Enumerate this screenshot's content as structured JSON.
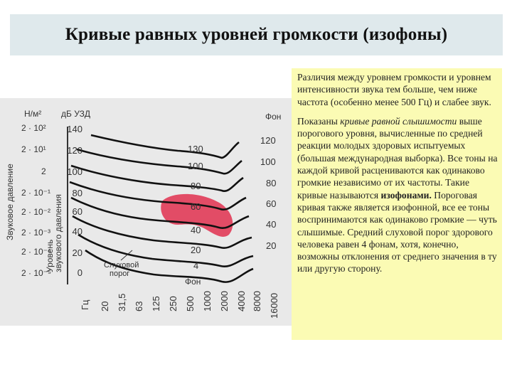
{
  "header": {
    "title": "Кривые равных уровней громкости (изофоны)"
  },
  "figure": {
    "pressure_unit": "Н/м²",
    "intensity_unit": "дБ УЗД",
    "phon_top_label": "Фон",
    "phon_bottom_label": "Фон",
    "threshold_label_line1": "Слуховой",
    "threshold_label_line2": "порог",
    "freq_unit": "Гц",
    "y_title_pressure": "Звуковое давление",
    "y_title_level_1": "Уровень",
    "y_title_level_2": "звукового давления",
    "pressure_ticks": [
      "2 · 10²",
      "2 · 10¹",
      "2",
      "2 · 10⁻¹",
      "2 · 10⁻²",
      "2 · 10⁻³",
      "2 · 10⁻⁴",
      "2 · 10⁻⁵"
    ],
    "db_ticks": [
      "140",
      "120",
      "100",
      "80",
      "60",
      "40",
      "20",
      "0"
    ],
    "freq_ticks": [
      "20",
      "31,5",
      "63",
      "125",
      "250",
      "500",
      "1000",
      "2000",
      "4000",
      "8000",
      "16000"
    ],
    "inner_phon_labels": [
      "130",
      "100",
      "80",
      "60",
      "40",
      "20",
      "4"
    ],
    "right_phon_labels": [
      "120",
      "100",
      "80",
      "60",
      "40",
      "20"
    ],
    "highlight_color": "#e0304f"
  },
  "note": {
    "paragraph1": "Различия между уровнем громкости и уровнем интенсивности звука тем больше, чем ниже частота (особенно менее 500 Гц) и слабее звук.",
    "p2_start": "Показаны ",
    "p2_italic": "кривые равной слышимости",
    "p2_middle": " выше порогового уровня, вычисленные по средней реакции молодых здоровых испытуемых (большая международная выборка). Все тоны на каждой кривой расцениваются как одинаково громкие независимо от их частоты. Такие кривые называются ",
    "p2_bold": "изофонами.",
    "p2_end": " Пороговая кривая также является изофонной, все ее тоны воспринимаются как одинаково громкие — чуть слышимые. Средний слуховой порог здорового человека равен 4 фонам, хотя, конечно, возможны отклонения от среднего значения в ту или другую сторону."
  }
}
